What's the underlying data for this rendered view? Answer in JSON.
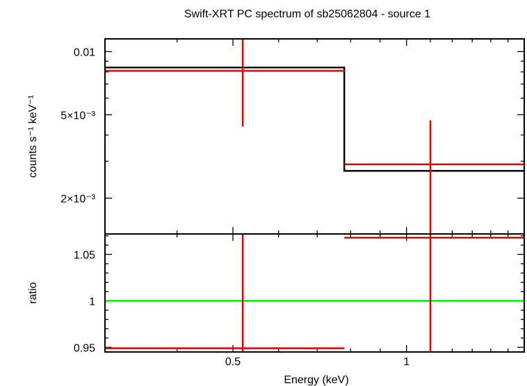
{
  "colors": {
    "data": "#e00000",
    "model": "#000000",
    "reference": "#00ee00",
    "axes": "#000000"
  },
  "chart_data": [
    {
      "type": "line",
      "panel": "spectrum",
      "title": "Swift-XRT PC spectrum of sb25062804 - source 1",
      "xlabel": "",
      "ylabel": "counts s⁻¹ keV⁻¹",
      "xscale": "log",
      "yscale": "log",
      "xlim": [
        0.3,
        1.6
      ],
      "ylim": [
        0.00135,
        0.0115
      ],
      "grid": false,
      "legend": "none",
      "y_tick_labels": [
        {
          "value": 0.01,
          "label": "0.01"
        },
        {
          "value": 0.005,
          "label": "5×10⁻³"
        },
        {
          "value": 0.002,
          "label": "2×10⁻³"
        }
      ],
      "series": [
        {
          "role": "data",
          "style": "crosses",
          "points": [
            {
              "x": 0.52,
              "x_lo": 0.3,
              "x_hi": 0.78,
              "y": 0.0081,
              "y_lo": 0.0044,
              "y_hi": 0.0115
            },
            {
              "x": 1.1,
              "x_lo": 0.78,
              "x_hi": 1.6,
              "y": 0.0029,
              "y_lo": 0.0,
              "y_hi": 0.0047
            }
          ]
        },
        {
          "role": "model",
          "style": "step",
          "bins": [
            {
              "x_lo": 0.3,
              "x_hi": 0.78,
              "y": 0.0084
            },
            {
              "x_lo": 0.78,
              "x_hi": 1.6,
              "y": 0.0027
            }
          ]
        }
      ]
    },
    {
      "type": "line",
      "panel": "ratio",
      "title": "",
      "xlabel": "Energy (keV)",
      "ylabel": "ratio",
      "xscale": "log",
      "yscale": "linear",
      "xlim": [
        0.3,
        1.6
      ],
      "ylim": [
        0.945,
        1.072
      ],
      "grid": false,
      "legend": "none",
      "x_tick_labels": [
        {
          "value": 0.5,
          "label": "0.5"
        },
        {
          "value": 1,
          "label": "1"
        }
      ],
      "y_tick_labels": [
        {
          "value": 1.05,
          "label": "1.05"
        },
        {
          "value": 1,
          "label": "1"
        },
        {
          "value": 0.95,
          "label": "0.95"
        }
      ],
      "series": [
        {
          "role": "data",
          "style": "crosses",
          "points": [
            {
              "x": 0.52,
              "x_lo": 0.3,
              "x_hi": 0.78,
              "y": 0.949,
              "y_lo": 0.945,
              "y_hi": 1.072
            },
            {
              "x": 1.1,
              "x_lo": 0.78,
              "x_hi": 1.6,
              "y": 1.068,
              "y_lo": 0.945,
              "y_hi": 1.072
            }
          ]
        },
        {
          "role": "reference",
          "style": "hline",
          "y": 1.0
        }
      ]
    }
  ]
}
